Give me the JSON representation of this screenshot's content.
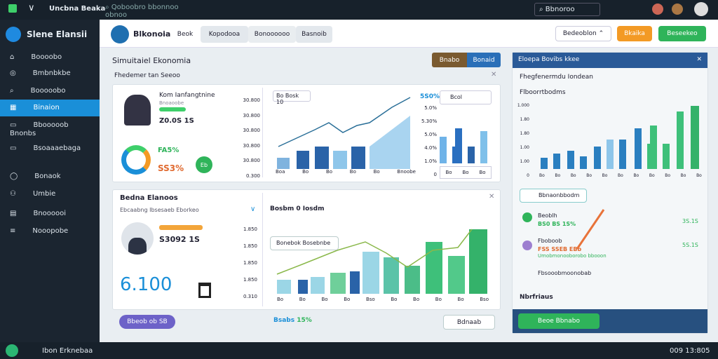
{
  "topbar": {
    "app": "Uncbna Beaka",
    "search": "Qoboobro bbonnoo obnoo",
    "search_right": "Bbnoroo"
  },
  "sidebar": {
    "title": "Slene Elansii",
    "items": [
      "Boooobo",
      "Bmbnbkbe",
      "Booooobo",
      "Binaion",
      "Bbooooob Bnonbs",
      "Bsoaaaebaga",
      "Bonaok",
      "Umbie",
      "Bnoooooi",
      "Nooopobe"
    ]
  },
  "header": {
    "brand": "Blkonoia",
    "tabs": [
      "Beok",
      "Kopodooa",
      "Bonoooooo",
      "Basnoib"
    ],
    "select": "Bedeoblon",
    "btn_orange": "Bkaika",
    "btn_green": "Beseekeo"
  },
  "main": {
    "title": "Simuitaiel Ekonomia",
    "btn_a": "Bnabo",
    "btn_b": "Bonaid",
    "subtitle": "Fhedemer tan Seeoo",
    "card1": {
      "name": "Kom Ianfangtnine",
      "sub": "Bnoaoobe",
      "value": "Z0.0S 1S",
      "pct_a": "FA5%",
      "pct_b": "SS3%",
      "ring": "Eb",
      "yaxis": [
        "30.800",
        "30.800",
        "30.800",
        "30.800",
        "30.800",
        "0.300"
      ],
      "pill": "Bo Bosk 10",
      "cats": [
        "Boa",
        "Bo",
        "Bo",
        "Bo",
        "Bo",
        "Bnoobe"
      ],
      "y2": [
        "5.0%",
        "5.30%",
        "5.0%",
        "4.0%",
        "1.0%",
        "0"
      ],
      "right_label": "5S0%",
      "tab": "Bcol",
      "cats2": [
        "Bo",
        "Bo",
        "Bo"
      ]
    },
    "card2": {
      "title": "Bedna Elanoos",
      "sub": "Ebcaabng Ibsesaeb Eborkeo",
      "name": "S3092 1S",
      "big": "6.100",
      "yaxis": [
        "1.850",
        "1.850",
        "1.850",
        "1.850",
        "0.310"
      ],
      "chart_title": "Bosbm 0 Iosdm",
      "tip": "Bonebok Bosebnbe",
      "cats": [
        "Bo",
        "Bo",
        "Bo",
        "Bo",
        "Bso",
        "Bo",
        "Bo",
        "Bo",
        "Bo",
        "Bso"
      ]
    },
    "bottom": {
      "pill": "Bbeob ob SB",
      "stat": "Bsabs",
      "stat_pct": "15%",
      "button": "Bdnaab"
    }
  },
  "panel": {
    "header": "Eloepa Bovibs kkee",
    "row1": "Fhegfenermdu Iondean",
    "row2": "Flboorrtbodms",
    "yaxis": [
      "1.000",
      "1.80",
      "1.80",
      "1.00",
      "1.00",
      "0"
    ],
    "cats": [
      "Bo",
      "Bo",
      "Bo",
      "Bo",
      "Bo",
      "Bo",
      "Bo",
      "Bo",
      "Bo",
      "Bo",
      "Bo"
    ],
    "chip": "Bbnaonbbodm",
    "item1": "Beoblh",
    "item1_val": "BS0 BS 1S%",
    "item1_r": "3S.1S",
    "item2": "Fboboob",
    "item2_val": "FSS SSEB EBb",
    "item2_g": "Umobmonooborobo bbooon",
    "item2_r": "5S.1S",
    "item3": "Fbsooobmoonobab",
    "footer": "Nbrfriaus",
    "btn": "Beoe Bbnabo"
  },
  "statusbar": {
    "left": "Ibon Erknebaa",
    "time": "009 13:805"
  }
}
